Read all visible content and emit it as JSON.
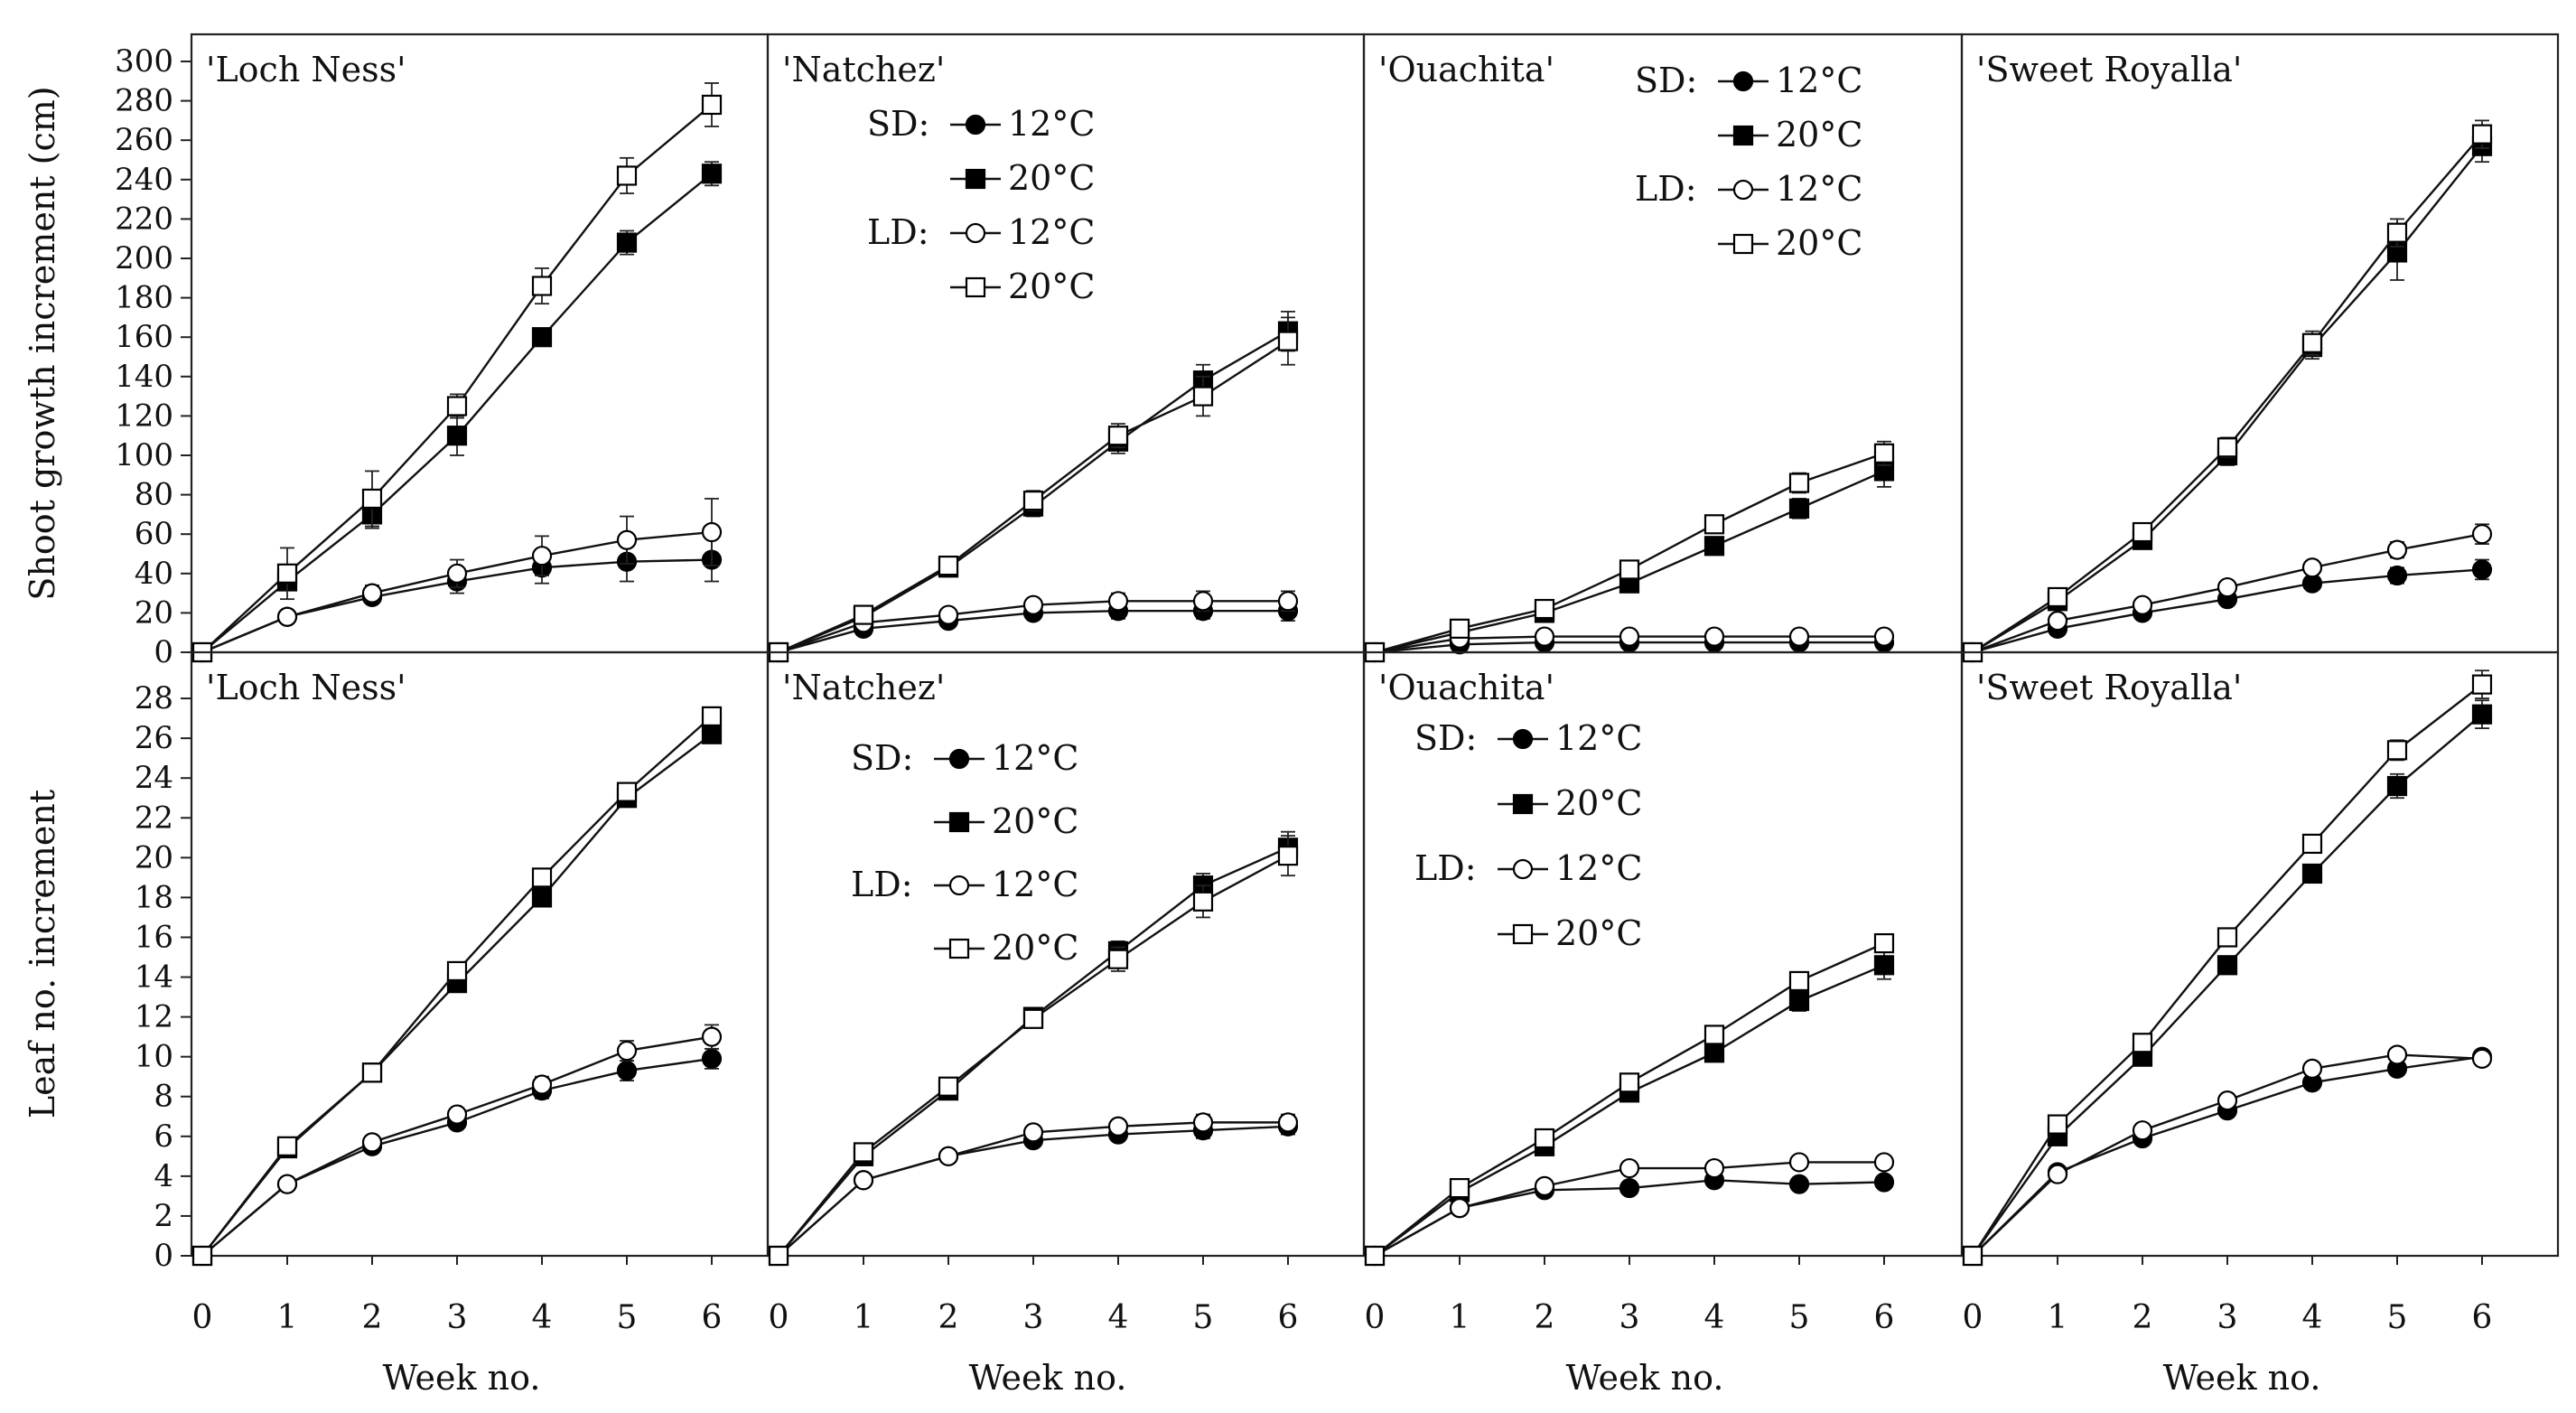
{
  "figure": {
    "series_styles": [
      {
        "key": "sd12",
        "marker": "circle",
        "filled": true
      },
      {
        "key": "sd20",
        "marker": "square",
        "filled": true
      },
      {
        "key": "ld12",
        "marker": "circle",
        "filled": false
      },
      {
        "key": "ld20",
        "marker": "square",
        "filled": false
      }
    ],
    "legend_labels": {
      "sd_prefix": "SD:",
      "ld_prefix": "LD:",
      "t12": "12°C",
      "t20": "20°C"
    }
  },
  "chart_data": [
    {
      "type": "line",
      "row": "shoot",
      "col": 0,
      "title": "'Loch Ness'",
      "ylabel": "Shoot growth increment (cm)",
      "xlabel": "",
      "x": [
        0,
        1,
        2,
        3,
        4,
        5,
        6
      ],
      "xticks": [
        "0",
        "1",
        "2",
        "3",
        "4",
        "5",
        "6"
      ],
      "ylim": [
        0,
        300
      ],
      "yticks": [
        0,
        20,
        40,
        60,
        80,
        100,
        120,
        140,
        160,
        180,
        200,
        220,
        240,
        260,
        280,
        300
      ],
      "legend": null,
      "series": [
        {
          "name": "SD 12°C",
          "values": [
            0,
            18,
            28,
            36,
            43,
            46,
            47
          ],
          "errors": [
            0,
            2,
            3,
            6,
            8,
            10,
            11
          ]
        },
        {
          "name": "SD 20°C",
          "values": [
            0,
            36,
            70,
            110,
            160,
            208,
            243
          ],
          "errors": [
            0,
            4,
            7,
            10,
            4,
            6,
            6
          ]
        },
        {
          "name": "LD 12°C",
          "values": [
            0,
            18,
            30,
            40,
            49,
            57,
            61
          ],
          "errors": [
            0,
            2,
            4,
            7,
            10,
            12,
            17
          ]
        },
        {
          "name": "LD 20°C",
          "values": [
            0,
            40,
            78,
            125,
            186,
            242,
            278
          ],
          "errors": [
            0,
            13,
            14,
            6,
            9,
            9,
            11
          ]
        }
      ]
    },
    {
      "type": "line",
      "row": "shoot",
      "col": 1,
      "title": "'Natchez'",
      "ylabel": "",
      "xlabel": "",
      "x": [
        0,
        1,
        2,
        3,
        4,
        5,
        6
      ],
      "xticks": [
        "0",
        "1",
        "2",
        "3",
        "4",
        "5",
        "6"
      ],
      "ylim": [
        0,
        300
      ],
      "yticks": [],
      "legend": "top-left",
      "series": [
        {
          "name": "SD 12°C",
          "values": [
            0,
            12,
            16,
            20,
            21,
            21,
            21
          ],
          "errors": [
            0,
            2,
            2,
            3,
            4,
            4,
            5
          ]
        },
        {
          "name": "SD 20°C",
          "values": [
            0,
            18,
            43,
            74,
            107,
            138,
            163
          ],
          "errors": [
            0,
            3,
            3,
            5,
            6,
            8,
            10
          ]
        },
        {
          "name": "LD 12°C",
          "values": [
            0,
            15,
            19,
            24,
            26,
            26,
            26
          ],
          "errors": [
            0,
            2,
            2,
            3,
            4,
            5,
            5
          ]
        },
        {
          "name": "LD 20°C",
          "values": [
            0,
            19,
            44,
            77,
            110,
            130,
            158
          ],
          "errors": [
            0,
            3,
            3,
            5,
            6,
            10,
            12
          ]
        }
      ]
    },
    {
      "type": "line",
      "row": "shoot",
      "col": 2,
      "title": "'Ouachita'",
      "ylabel": "",
      "xlabel": "",
      "x": [
        0,
        1,
        2,
        3,
        4,
        5,
        6
      ],
      "xticks": [
        "0",
        "1",
        "2",
        "3",
        "4",
        "5",
        "6"
      ],
      "ylim": [
        0,
        300
      ],
      "yticks": [],
      "legend": "top-right",
      "series": [
        {
          "name": "SD 12°C",
          "values": [
            0,
            4,
            5,
            5,
            5,
            5,
            5
          ],
          "errors": [
            0,
            1,
            1,
            1,
            1,
            1,
            1
          ]
        },
        {
          "name": "SD 20°C",
          "values": [
            0,
            10,
            20,
            35,
            54,
            73,
            92
          ],
          "errors": [
            0,
            2,
            2,
            3,
            4,
            5,
            8
          ]
        },
        {
          "name": "LD 12°C",
          "values": [
            0,
            7,
            8,
            8,
            8,
            8,
            8
          ],
          "errors": [
            0,
            1,
            1,
            1,
            1,
            1,
            1
          ]
        },
        {
          "name": "LD 20°C",
          "values": [
            0,
            12,
            22,
            42,
            65,
            86,
            101
          ],
          "errors": [
            0,
            2,
            3,
            3,
            4,
            5,
            6
          ]
        }
      ]
    },
    {
      "type": "line",
      "row": "shoot",
      "col": 3,
      "title": "'Sweet Royalla'",
      "ylabel": "",
      "xlabel": "",
      "x": [
        0,
        1,
        2,
        3,
        4,
        5,
        6
      ],
      "xticks": [
        "0",
        "1",
        "2",
        "3",
        "4",
        "5",
        "6"
      ],
      "ylim": [
        0,
        300
      ],
      "yticks": [],
      "legend": null,
      "series": [
        {
          "name": "SD 12°C",
          "values": [
            0,
            12,
            20,
            27,
            35,
            39,
            42
          ],
          "errors": [
            0,
            2,
            2,
            3,
            3,
            4,
            5
          ]
        },
        {
          "name": "SD 20°C",
          "values": [
            0,
            26,
            57,
            100,
            155,
            203,
            257
          ],
          "errors": [
            0,
            3,
            4,
            5,
            6,
            14,
            8
          ]
        },
        {
          "name": "LD 12°C",
          "values": [
            0,
            16,
            24,
            33,
            43,
            52,
            60
          ],
          "errors": [
            0,
            2,
            2,
            3,
            3,
            4,
            5
          ]
        },
        {
          "name": "LD 20°C",
          "values": [
            0,
            28,
            61,
            104,
            157,
            213,
            263
          ],
          "errors": [
            0,
            3,
            4,
            5,
            6,
            7,
            7
          ]
        }
      ]
    },
    {
      "type": "line",
      "row": "leaf",
      "col": 0,
      "title": "'Loch Ness'",
      "ylabel": "Leaf no. increment",
      "xlabel": "Week no.",
      "x": [
        0,
        1,
        2,
        3,
        4,
        5,
        6
      ],
      "xticks": [
        "0",
        "1",
        "2",
        "3",
        "4",
        "5",
        "6"
      ],
      "ylim": [
        0,
        30
      ],
      "yticks": [
        0,
        2,
        4,
        6,
        8,
        10,
        12,
        14,
        16,
        18,
        20,
        22,
        24,
        26,
        28
      ],
      "legend": null,
      "series": [
        {
          "name": "SD 12°C",
          "values": [
            0,
            3.6,
            5.5,
            6.7,
            8.3,
            9.3,
            9.9
          ],
          "errors": [
            0,
            0.2,
            0.2,
            0.3,
            0.4,
            0.5,
            0.5
          ]
        },
        {
          "name": "SD 20°C",
          "values": [
            0,
            5.4,
            9.2,
            13.7,
            18.0,
            23.0,
            26.2
          ],
          "errors": [
            0,
            0.2,
            0.2,
            0.3,
            0.3,
            0.4,
            0.4
          ]
        },
        {
          "name": "LD 12°C",
          "values": [
            0,
            3.6,
            5.7,
            7.1,
            8.6,
            10.3,
            11.0
          ],
          "errors": [
            0,
            0.2,
            0.2,
            0.3,
            0.4,
            0.5,
            0.6
          ]
        },
        {
          "name": "LD 20°C",
          "values": [
            0,
            5.5,
            9.2,
            14.3,
            19.0,
            23.3,
            27.1
          ],
          "errors": [
            0,
            0.2,
            0.2,
            0.3,
            0.3,
            0.4,
            0.4
          ]
        }
      ]
    },
    {
      "type": "line",
      "row": "leaf",
      "col": 1,
      "title": "'Natchez'",
      "ylabel": "",
      "xlabel": "Week no.",
      "x": [
        0,
        1,
        2,
        3,
        4,
        5,
        6
      ],
      "xticks": [
        "0",
        "1",
        "2",
        "3",
        "4",
        "5",
        "6"
      ],
      "ylim": [
        0,
        30
      ],
      "yticks": [],
      "legend": "top-left",
      "series": [
        {
          "name": "SD 12°C",
          "values": [
            0,
            3.8,
            5.0,
            5.8,
            6.1,
            6.3,
            6.5
          ],
          "errors": [
            0,
            0.2,
            0.2,
            0.3,
            0.3,
            0.4,
            0.4
          ]
        },
        {
          "name": "SD 20°C",
          "values": [
            0,
            5.0,
            8.3,
            12.0,
            15.3,
            18.6,
            20.5
          ],
          "errors": [
            0,
            0.2,
            0.3,
            0.4,
            0.5,
            0.6,
            0.8
          ]
        },
        {
          "name": "LD 12°C",
          "values": [
            0,
            3.8,
            5.0,
            6.2,
            6.5,
            6.7,
            6.7
          ],
          "errors": [
            0,
            0.2,
            0.2,
            0.3,
            0.3,
            0.4,
            0.4
          ]
        },
        {
          "name": "LD 20°C",
          "values": [
            0,
            5.2,
            8.5,
            11.9,
            14.9,
            17.8,
            20.1
          ],
          "errors": [
            0,
            0.2,
            0.3,
            0.4,
            0.6,
            0.8,
            1.0
          ]
        }
      ]
    },
    {
      "type": "line",
      "row": "leaf",
      "col": 2,
      "title": "'Ouachita'",
      "ylabel": "",
      "xlabel": "Week no.",
      "x": [
        0,
        1,
        2,
        3,
        4,
        5,
        6
      ],
      "xticks": [
        "0",
        "1",
        "2",
        "3",
        "4",
        "5",
        "6"
      ],
      "ylim": [
        0,
        30
      ],
      "yticks": [],
      "legend": "top-left",
      "series": [
        {
          "name": "SD 12°C",
          "values": [
            0,
            2.4,
            3.3,
            3.4,
            3.8,
            3.6,
            3.7
          ],
          "errors": [
            0,
            0.2,
            0.2,
            0.3,
            0.3,
            0.3,
            0.3
          ]
        },
        {
          "name": "SD 20°C",
          "values": [
            0,
            3.2,
            5.5,
            8.2,
            10.2,
            12.8,
            14.6
          ],
          "errors": [
            0,
            0.2,
            0.3,
            0.3,
            0.4,
            0.5,
            0.7
          ]
        },
        {
          "name": "LD 12°C",
          "values": [
            0,
            2.4,
            3.5,
            4.4,
            4.4,
            4.7,
            4.7
          ],
          "errors": [
            0,
            0.2,
            0.2,
            0.3,
            0.3,
            0.3,
            0.3
          ]
        },
        {
          "name": "LD 20°C",
          "values": [
            0,
            3.4,
            5.9,
            8.7,
            11.1,
            13.8,
            15.7
          ],
          "errors": [
            0,
            0.2,
            0.3,
            0.3,
            0.4,
            0.4,
            0.4
          ]
        }
      ]
    },
    {
      "type": "line",
      "row": "leaf",
      "col": 3,
      "title": "'Sweet Royalla'",
      "ylabel": "",
      "xlabel": "Week no.",
      "x": [
        0,
        1,
        2,
        3,
        4,
        5,
        6
      ],
      "xticks": [
        "0",
        "1",
        "2",
        "3",
        "4",
        "5",
        "6"
      ],
      "ylim": [
        0,
        30
      ],
      "yticks": [],
      "legend": null,
      "series": [
        {
          "name": "SD 12°C",
          "values": [
            0,
            4.2,
            5.9,
            7.3,
            8.7,
            9.4,
            10.0
          ],
          "errors": [
            0,
            0.2,
            0.2,
            0.3,
            0.3,
            0.3,
            0.3
          ]
        },
        {
          "name": "SD 20°C",
          "values": [
            0,
            6.0,
            10.0,
            14.6,
            19.2,
            23.6,
            27.2
          ],
          "errors": [
            0,
            0.3,
            0.3,
            0.4,
            0.4,
            0.6,
            0.7
          ]
        },
        {
          "name": "LD 12°C",
          "values": [
            0,
            4.1,
            6.3,
            7.8,
            9.4,
            10.1,
            9.9
          ],
          "errors": [
            0,
            0.2,
            0.2,
            0.3,
            0.3,
            0.3,
            0.3
          ]
        },
        {
          "name": "LD 20°C",
          "values": [
            0,
            6.6,
            10.7,
            16.0,
            20.7,
            25.4,
            28.7
          ],
          "errors": [
            0,
            0.3,
            0.3,
            0.4,
            0.4,
            0.5,
            0.7
          ]
        }
      ]
    }
  ]
}
